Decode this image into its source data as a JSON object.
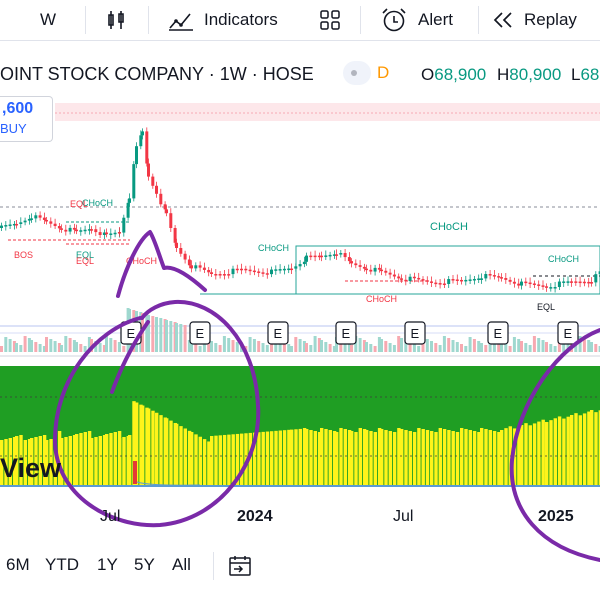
{
  "toolbar": {
    "interval_label": "W",
    "indicators_label": "Indicators",
    "alert_label": "Alert",
    "replay_label": "Replay"
  },
  "legend": {
    "title": "OINT STOCK COMPANY · 1W · HOSE",
    "delay_badge": "D",
    "open_key": "O",
    "open_val": "68,900",
    "high_key": "H",
    "high_val": "80,900",
    "low_key": "L",
    "low_val": "68"
  },
  "price_box": {
    "price": ",600",
    "side": "BUY"
  },
  "smc_labels": {
    "choch_main": "CHoCH",
    "choch_1": "CHoCH",
    "choch_2": "CHoCH",
    "choch_3": "CHoCH",
    "choch_4": "CHoCH",
    "choch_red": "CHoCH",
    "eqh": "EQL",
    "eqh2": "EQL",
    "eql": "EQL",
    "bos": "BOS",
    "eql2": "EQL"
  },
  "earnings_marker": "E",
  "x_axis": {
    "labels": [
      "Jul",
      "2024",
      "Jul",
      "2025"
    ]
  },
  "watermark": "View",
  "ranges": [
    "6M",
    "YTD",
    "1Y",
    "5Y",
    "All"
  ],
  "colors": {
    "up": "#089981",
    "down": "#f23645",
    "accent": "#2962ff",
    "annotation": "#7a2aa8",
    "osc_green": "#1f9e23",
    "osc_yellow": "#fff41a"
  }
}
